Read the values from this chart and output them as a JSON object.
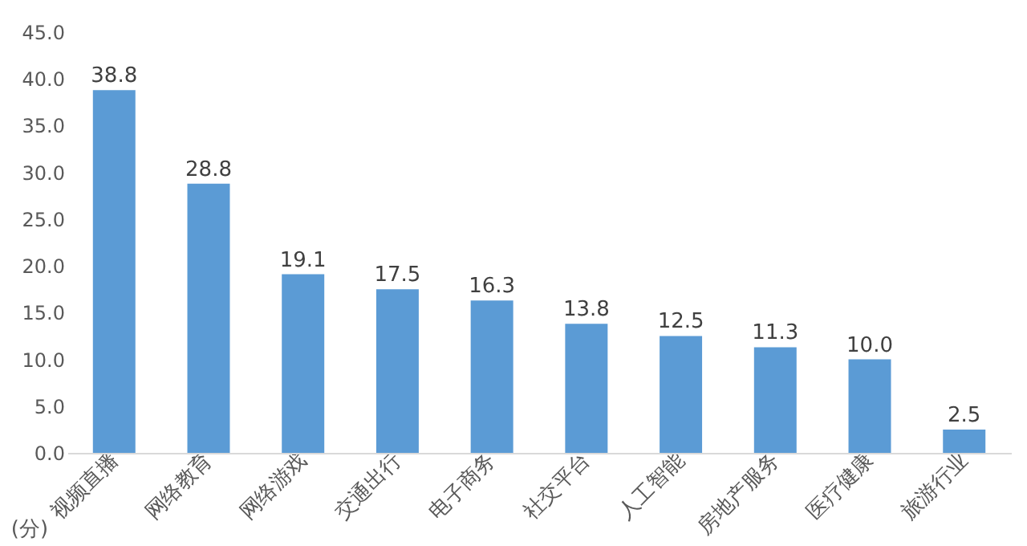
{
  "chart_data": {
    "type": "bar",
    "ylabel": "(分)",
    "categories": [
      "视频直播",
      "网络教育",
      "网络游戏",
      "交通出行",
      "电子商务",
      "社交平台",
      "人工智能",
      "房地产服务",
      "医疗健康",
      "旅游行业"
    ],
    "values": [
      38.8,
      28.8,
      19.1,
      17.5,
      16.3,
      13.8,
      12.5,
      11.3,
      10.0,
      2.5
    ],
    "value_labels": [
      "38.8",
      "28.8",
      "19.1",
      "17.5",
      "16.3",
      "13.8",
      "12.5",
      "11.3",
      "10.0",
      "2.5"
    ],
    "color": "#5b9bd5",
    "ylim": [
      0,
      45
    ],
    "yticks": [
      {
        "value": 0,
        "label": "0.0"
      },
      {
        "value": 5,
        "label": "5.0"
      },
      {
        "value": 10,
        "label": "10.0"
      },
      {
        "value": 15,
        "label": "15.0"
      },
      {
        "value": 20,
        "label": "20.0"
      },
      {
        "value": 25,
        "label": "25.0"
      },
      {
        "value": 30,
        "label": "30.0"
      },
      {
        "value": 35,
        "label": "35.0"
      },
      {
        "value": 40,
        "label": "40.0"
      },
      {
        "value": 45,
        "label": "45.0"
      }
    ],
    "grid": false
  }
}
